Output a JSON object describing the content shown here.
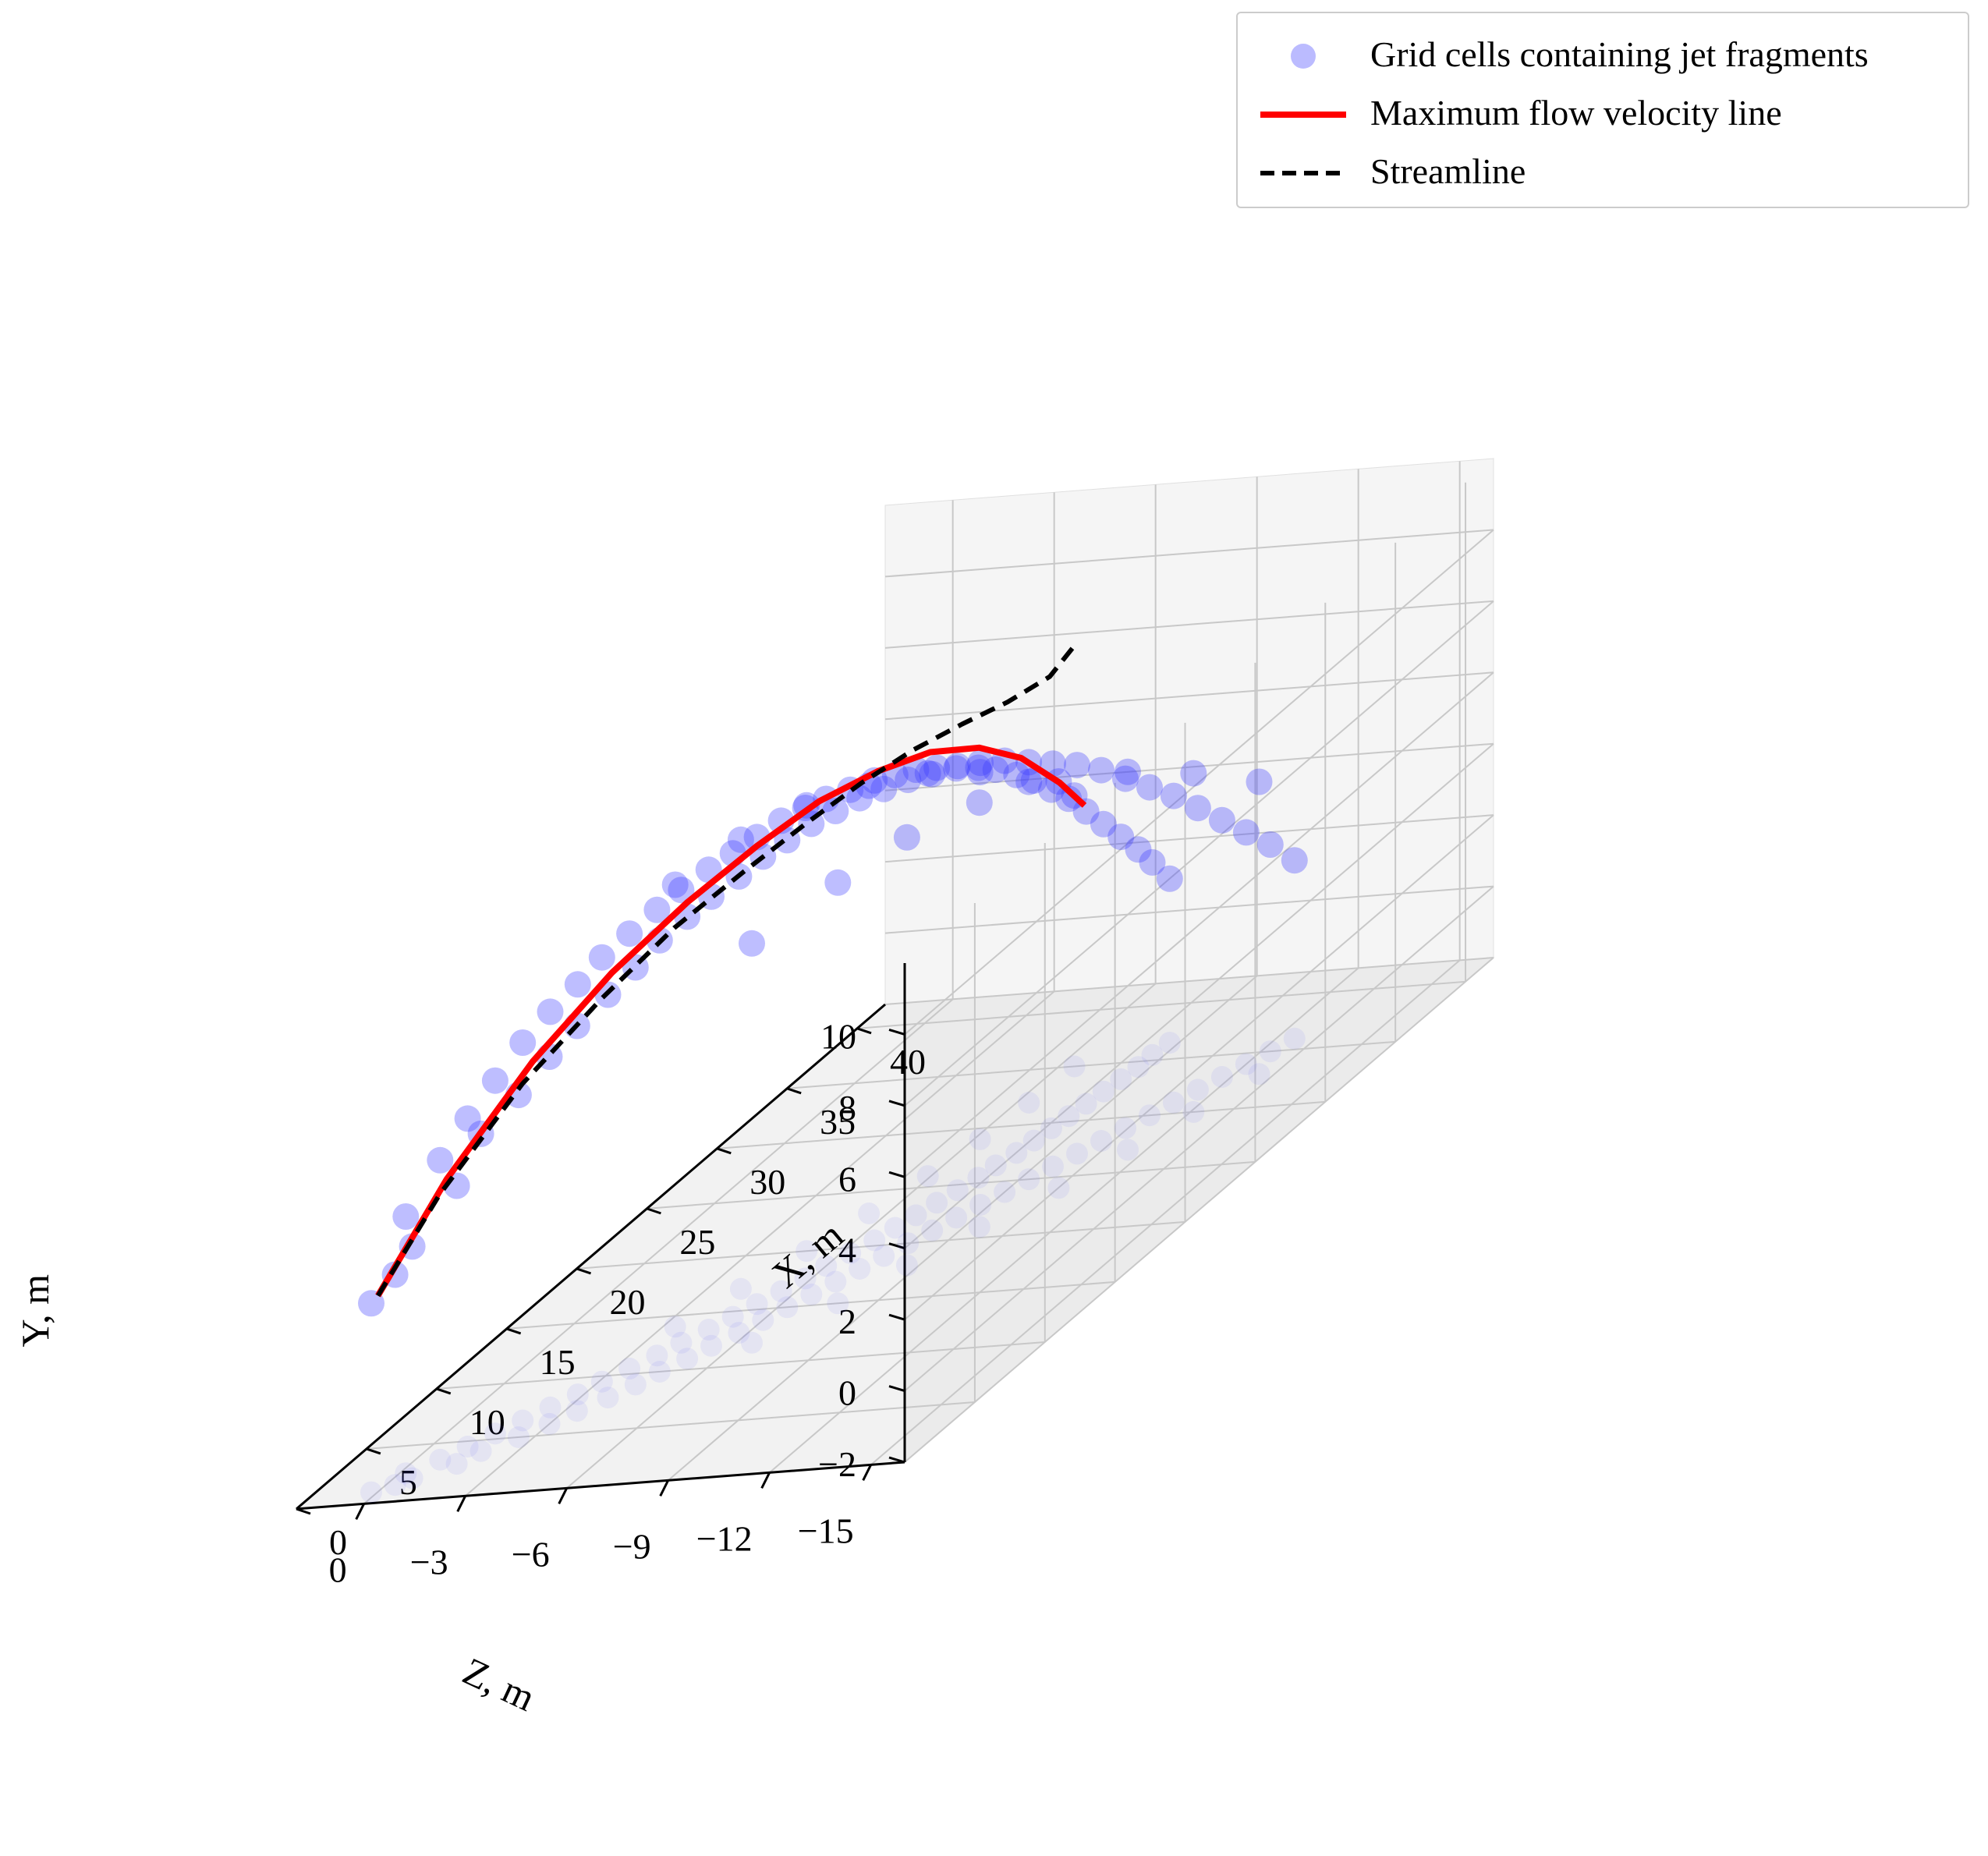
{
  "chart_data": {
    "type": "scatter",
    "projection": "3d",
    "grid": true,
    "legend_position": "top-right",
    "legend": [
      {
        "label": "Grid cells containing jet fragments",
        "marker": "circle",
        "color": "#3b3bff"
      },
      {
        "label": "Maximum flow velocity line",
        "style": "solid",
        "color": "#ff0000"
      },
      {
        "label": "Streamline",
        "style": "dashed",
        "color": "#000000"
      }
    ],
    "axes": {
      "x": {
        "label": "X, m",
        "lim": [
          0,
          42
        ],
        "ticks": [
          0,
          5,
          10,
          15,
          20,
          25,
          30,
          35,
          40
        ],
        "tick_labels": [
          "0",
          "5",
          "10",
          "15",
          "20",
          "25",
          "30",
          "35",
          "40"
        ]
      },
      "y": {
        "label": "Y, m",
        "lim": [
          -2,
          12
        ],
        "ticks": [
          -2,
          0,
          2,
          4,
          6,
          8,
          10
        ],
        "tick_labels": [
          "−2",
          "0",
          "2",
          "4",
          "6",
          "8",
          "10"
        ]
      },
      "z": {
        "label": "Z, m",
        "lim": [
          2,
          -16
        ],
        "ticks": [
          0,
          -3,
          -6,
          -9,
          -12,
          -15
        ],
        "tick_labels": [
          "0",
          "−3",
          "−6",
          "−9",
          "−12",
          "−15"
        ]
      }
    },
    "series": [
      {
        "name": "Maximum flow velocity line",
        "kind": "line",
        "color": "#ff0000",
        "dash": "solid",
        "points": [
          {
            "x": 1,
            "y": 3.5,
            "z": 0
          },
          {
            "x": 3,
            "y": 6.0,
            "z": -1.2
          },
          {
            "x": 6,
            "y": 8.2,
            "z": -2.5
          },
          {
            "x": 9,
            "y": 9.6,
            "z": -3.6
          },
          {
            "x": 12,
            "y": 10.5,
            "z": -4.6
          },
          {
            "x": 15,
            "y": 11.0,
            "z": -5.4
          },
          {
            "x": 18,
            "y": 11.2,
            "z": -6.0
          },
          {
            "x": 21,
            "y": 11.0,
            "z": -6.5
          },
          {
            "x": 24,
            "y": 10.5,
            "z": -6.8
          },
          {
            "x": 27,
            "y": 9.6,
            "z": -7.0
          },
          {
            "x": 30,
            "y": 8.3,
            "z": -7.0
          },
          {
            "x": 33,
            "y": 6.6,
            "z": -6.9
          },
          {
            "x": 35,
            "y": 5.3,
            "z": -6.8
          }
        ]
      },
      {
        "name": "Streamline",
        "kind": "line",
        "color": "#000000",
        "dash": "dashed",
        "points": [
          {
            "x": 1,
            "y": 3.5,
            "z": 0
          },
          {
            "x": 3,
            "y": 5.6,
            "z": -1.0
          },
          {
            "x": 6,
            "y": 7.6,
            "z": -2.2
          },
          {
            "x": 9,
            "y": 8.9,
            "z": -3.3
          },
          {
            "x": 12,
            "y": 9.8,
            "z": -4.2
          },
          {
            "x": 15,
            "y": 10.3,
            "z": -5.0
          },
          {
            "x": 18,
            "y": 10.6,
            "z": -5.6
          },
          {
            "x": 21,
            "y": 10.7,
            "z": -6.0
          },
          {
            "x": 24,
            "y": 10.6,
            "z": -6.3
          },
          {
            "x": 27,
            "y": 10.3,
            "z": -6.5
          },
          {
            "x": 30,
            "y": 9.9,
            "z": -6.6
          },
          {
            "x": 33,
            "y": 9.6,
            "z": -6.6
          },
          {
            "x": 35,
            "y": 9.8,
            "z": -6.5
          }
        ]
      },
      {
        "name": "Grid cells containing jet fragments",
        "kind": "scatter",
        "color": "#3b3bff",
        "description_of_cloud": "Dense band of points surrounding the maximum flow velocity line; x from 1 to 37 m, jet arcs up to about Y = 11 m and spreads laterally in Z between about 0 and −14 m.",
        "points": [
          {
            "x": 1,
            "y": 3.3,
            "z": 0.2
          },
          {
            "x": 1.5,
            "y": 3.9,
            "z": -0.3
          },
          {
            "x": 2,
            "y": 4.5,
            "z": -0.6
          },
          {
            "x": 2.5,
            "y": 5.2,
            "z": -0.2
          },
          {
            "x": 3,
            "y": 5.8,
            "z": -1.5
          },
          {
            "x": 3.5,
            "y": 6.4,
            "z": -0.8
          },
          {
            "x": 4,
            "y": 6.9,
            "z": -1.8
          },
          {
            "x": 4.5,
            "y": 7.2,
            "z": -1.2
          },
          {
            "x": 5,
            "y": 7.6,
            "z": -2.5
          },
          {
            "x": 5.5,
            "y": 7.9,
            "z": -1.6
          },
          {
            "x": 6,
            "y": 8.3,
            "z": -3.0
          },
          {
            "x": 6.5,
            "y": 8.6,
            "z": -2.0
          },
          {
            "x": 7,
            "y": 8.8,
            "z": -3.4
          },
          {
            "x": 7.5,
            "y": 9.1,
            "z": -2.4
          },
          {
            "x": 8,
            "y": 9.3,
            "z": -3.9
          },
          {
            "x": 8.5,
            "y": 9.5,
            "z": -2.8
          },
          {
            "x": 9,
            "y": 9.7,
            "z": -4.3
          },
          {
            "x": 9.5,
            "y": 9.9,
            "z": -3.1
          },
          {
            "x": 10,
            "y": 10.1,
            "z": -4.6
          },
          {
            "x": 10.5,
            "y": 10.2,
            "z": -3.5
          },
          {
            "x": 11,
            "y": 10.4,
            "z": -5.0
          },
          {
            "x": 11.5,
            "y": 10.5,
            "z": -3.9
          },
          {
            "x": 12,
            "y": 10.6,
            "z": -5.3
          },
          {
            "x": 12.5,
            "y": 10.7,
            "z": -4.2
          },
          {
            "x": 13,
            "y": 10.8,
            "z": -5.7
          },
          {
            "x": 13.5,
            "y": 10.9,
            "z": -4.6
          },
          {
            "x": 14,
            "y": 11.0,
            "z": -6.0
          },
          {
            "x": 14.5,
            "y": 11.0,
            "z": -4.9
          },
          {
            "x": 15,
            "y": 11.1,
            "z": -6.3
          },
          {
            "x": 15.5,
            "y": 11.1,
            "z": -5.2
          },
          {
            "x": 16,
            "y": 11.2,
            "z": -6.6
          },
          {
            "x": 16.5,
            "y": 11.2,
            "z": -5.5
          },
          {
            "x": 17,
            "y": 11.2,
            "z": -6.9
          },
          {
            "x": 17.5,
            "y": 11.2,
            "z": -5.8
          },
          {
            "x": 18,
            "y": 11.2,
            "z": -7.2
          },
          {
            "x": 18.5,
            "y": 11.1,
            "z": -6.0
          },
          {
            "x": 19,
            "y": 11.1,
            "z": -7.5
          },
          {
            "x": 19.5,
            "y": 11.0,
            "z": -6.3
          },
          {
            "x": 20,
            "y": 11.0,
            "z": -7.8
          },
          {
            "x": 20.5,
            "y": 10.9,
            "z": -6.6
          },
          {
            "x": 21,
            "y": 10.8,
            "z": -8.1
          },
          {
            "x": 21.5,
            "y": 10.7,
            "z": -6.8
          },
          {
            "x": 22,
            "y": 10.6,
            "z": -8.4
          },
          {
            "x": 22.5,
            "y": 10.5,
            "z": -7.0
          },
          {
            "x": 23,
            "y": 10.4,
            "z": -8.7
          },
          {
            "x": 23.5,
            "y": 10.2,
            "z": -7.2
          },
          {
            "x": 24,
            "y": 10.1,
            "z": -9.0
          },
          {
            "x": 24.5,
            "y": 9.9,
            "z": -7.4
          },
          {
            "x": 25,
            "y": 9.7,
            "z": -9.3
          },
          {
            "x": 25.5,
            "y": 9.5,
            "z": -7.6
          },
          {
            "x": 26,
            "y": 9.3,
            "z": -9.6
          },
          {
            "x": 26.5,
            "y": 9.1,
            "z": -7.7
          },
          {
            "x": 27,
            "y": 8.9,
            "z": -9.9
          },
          {
            "x": 27.5,
            "y": 8.6,
            "z": -7.9
          },
          {
            "x": 28,
            "y": 8.4,
            "z": -10.2
          },
          {
            "x": 28.5,
            "y": 8.1,
            "z": -8.0
          },
          {
            "x": 29,
            "y": 7.8,
            "z": -10.5
          },
          {
            "x": 29.5,
            "y": 7.5,
            "z": -8.1
          },
          {
            "x": 30,
            "y": 7.2,
            "z": -10.8
          },
          {
            "x": 30.5,
            "y": 6.9,
            "z": -8.2
          },
          {
            "x": 31,
            "y": 6.6,
            "z": -11.1
          },
          {
            "x": 31.5,
            "y": 6.2,
            "z": -8.3
          },
          {
            "x": 32,
            "y": 5.9,
            "z": -11.4
          },
          {
            "x": 32.5,
            "y": 5.5,
            "z": -8.4
          },
          {
            "x": 33,
            "y": 5.2,
            "z": -11.7
          },
          {
            "x": 33.5,
            "y": 4.8,
            "z": -8.5
          },
          {
            "x": 34,
            "y": 4.5,
            "z": -12.0
          },
          {
            "x": 34.5,
            "y": 4.1,
            "z": -8.6
          },
          {
            "x": 35,
            "y": 3.8,
            "z": -12.3
          },
          {
            "x": 35.5,
            "y": 3.4,
            "z": -8.6
          },
          {
            "x": 36,
            "y": 3.0,
            "z": -12.6
          },
          {
            "x": 36.5,
            "y": 2.6,
            "z": -8.7
          },
          {
            "x": 12,
            "y": 9.2,
            "z": -6.5
          },
          {
            "x": 15,
            "y": 9.8,
            "z": -7.8
          },
          {
            "x": 18,
            "y": 10.0,
            "z": -8.6
          },
          {
            "x": 21,
            "y": 9.9,
            "z": -9.5
          },
          {
            "x": 24,
            "y": 9.4,
            "z": -10.6
          },
          {
            "x": 27,
            "y": 8.6,
            "z": -11.4
          },
          {
            "x": 30,
            "y": 7.5,
            "z": -12.1
          },
          {
            "x": 33,
            "y": 6.2,
            "z": -12.8
          },
          {
            "x": 14,
            "y": 10.4,
            "z": -3.4
          },
          {
            "x": 17,
            "y": 10.6,
            "z": -4.1
          },
          {
            "x": 20,
            "y": 10.5,
            "z": -4.8
          },
          {
            "x": 23,
            "y": 10.0,
            "z": -5.4
          },
          {
            "x": 26,
            "y": 9.3,
            "z": -5.9
          },
          {
            "x": 29,
            "y": 8.3,
            "z": -6.2
          },
          {
            "x": 32,
            "y": 7.0,
            "z": -6.4
          },
          {
            "x": 35,
            "y": 5.6,
            "z": -6.5
          }
        ]
      }
    ]
  }
}
